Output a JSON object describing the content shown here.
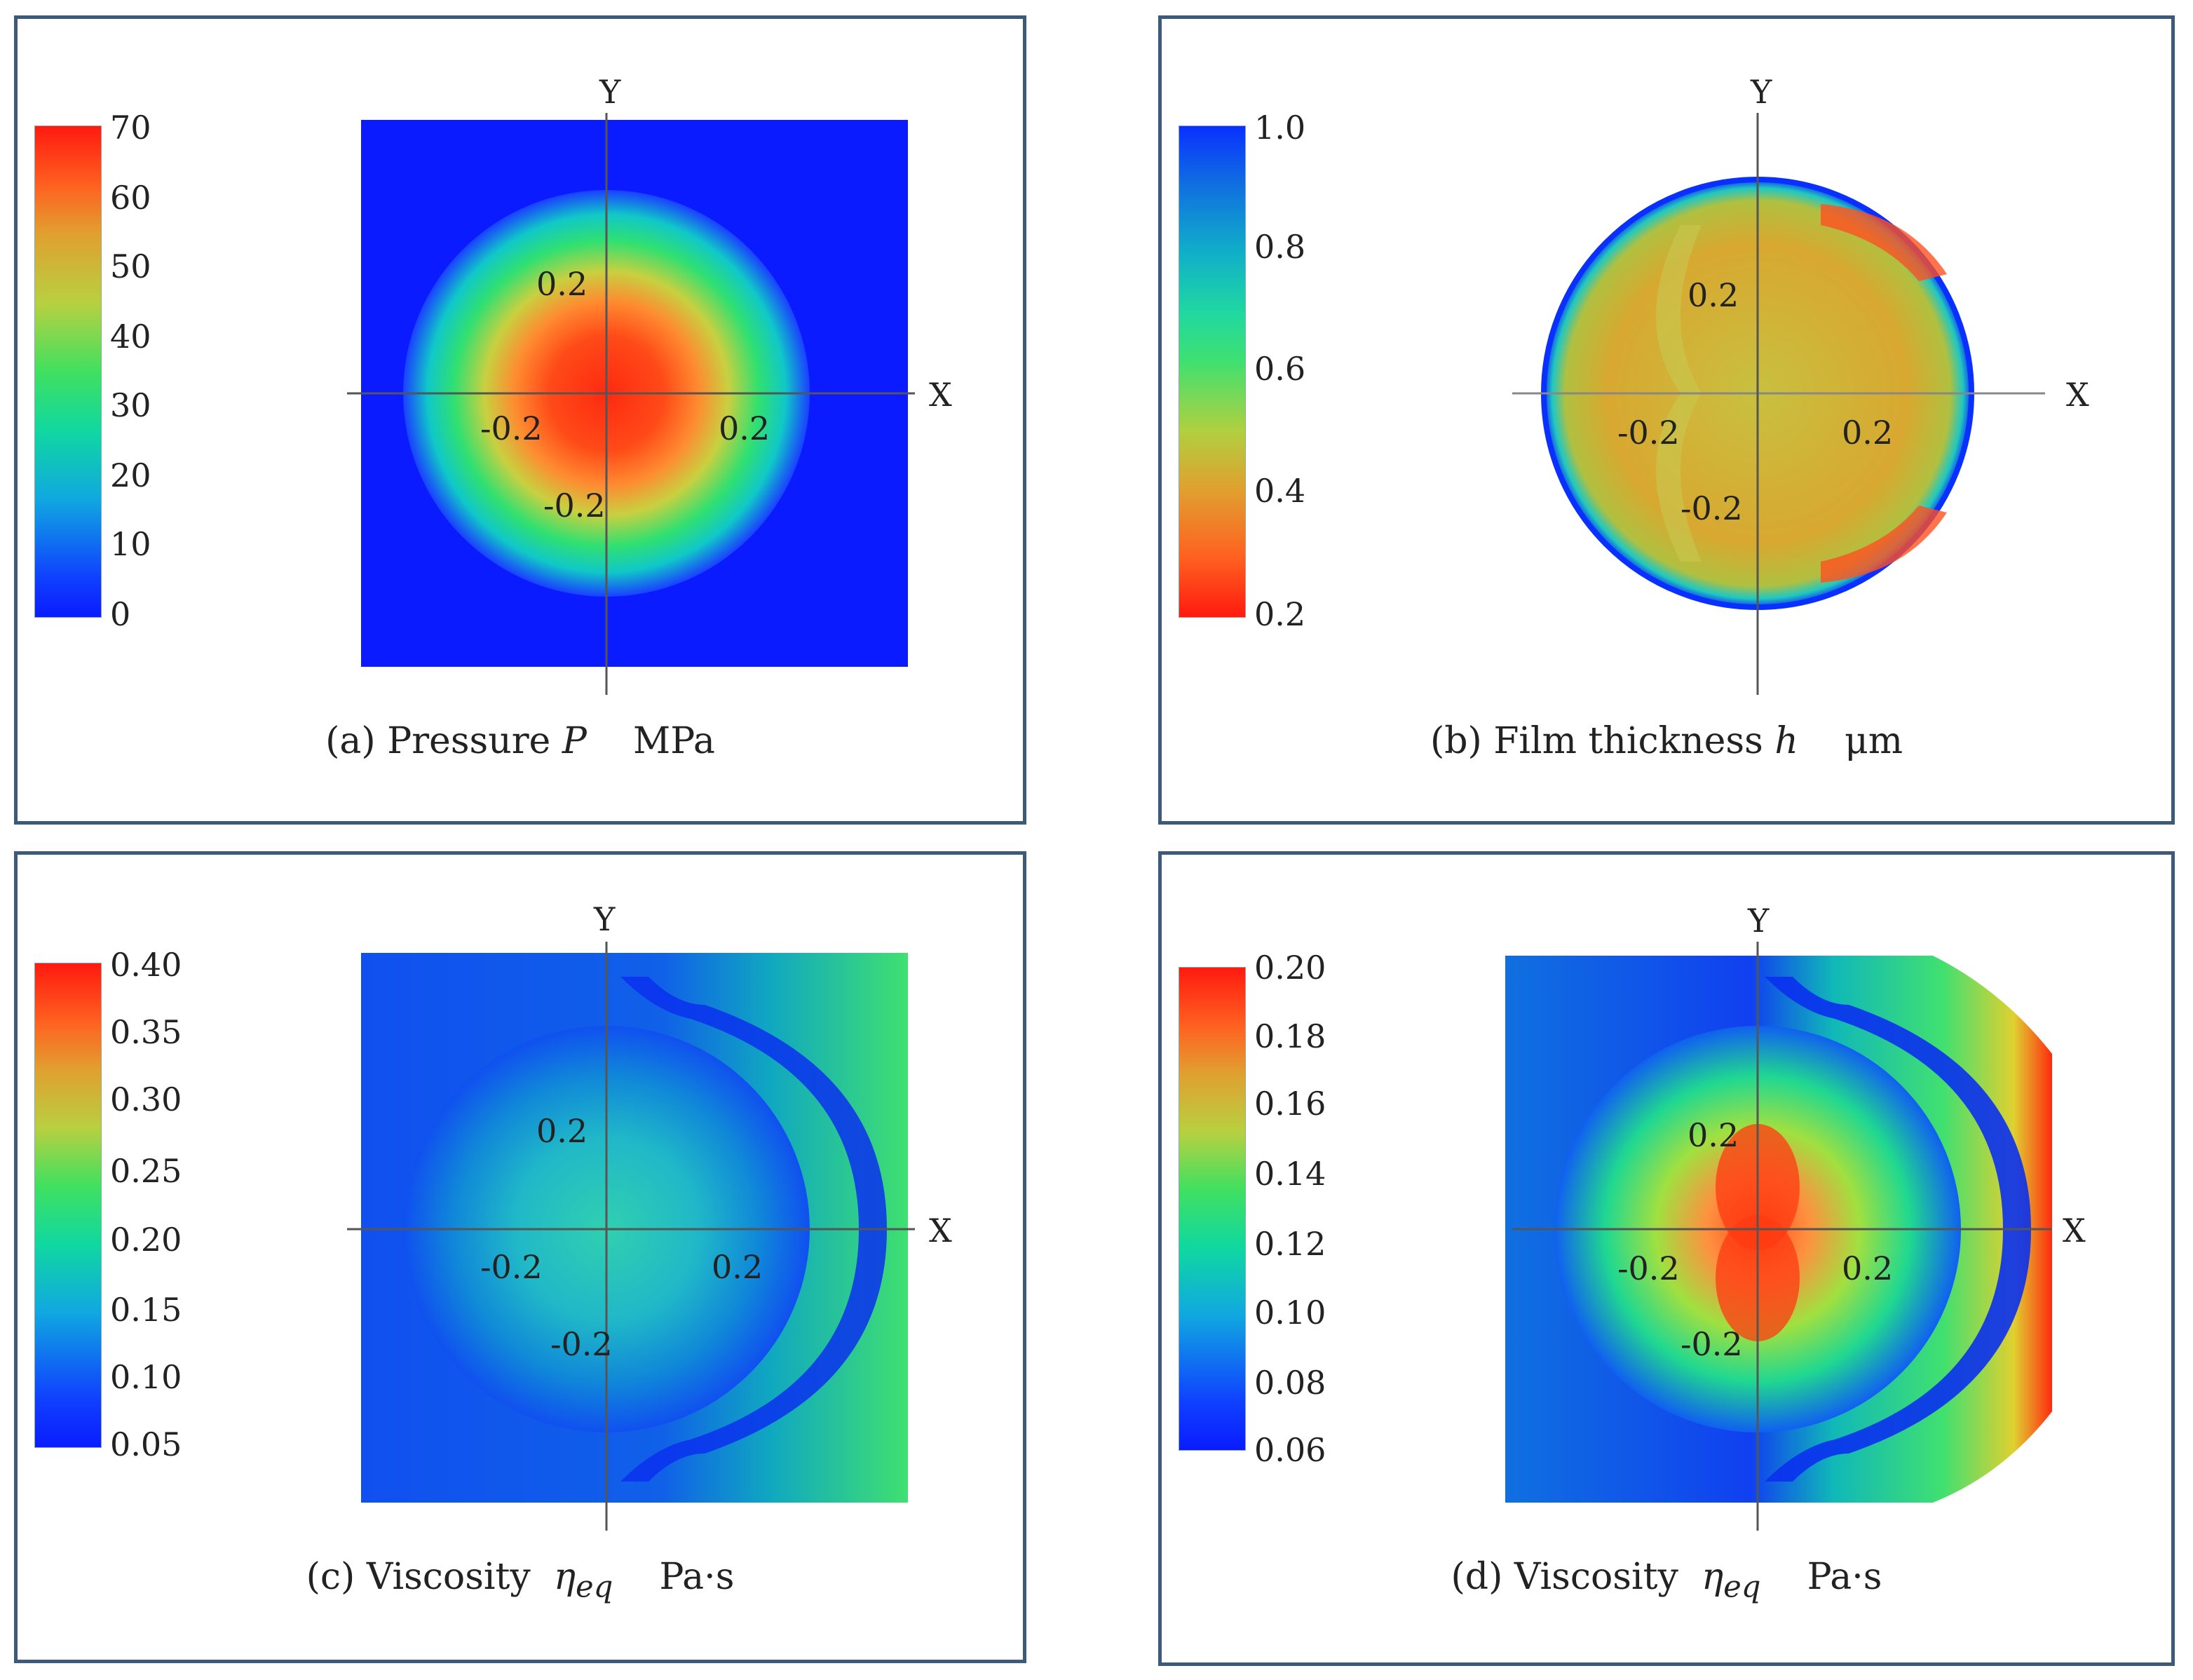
{
  "panels": {
    "a": {
      "caption": "(a) Pressure",
      "symbol": "P",
      "unit": "MPa",
      "colorbar_ticks": [
        "70",
        "60",
        "50",
        "40",
        "30",
        "20",
        "10",
        "0"
      ]
    },
    "b": {
      "caption": "(b) Film thickness",
      "symbol": "h",
      "unit": "μm",
      "colorbar_ticks": [
        "1.0",
        "0.8",
        "0.6",
        "0.4",
        "0.2"
      ]
    },
    "c": {
      "caption": "(c) Viscosity",
      "symbol": "η",
      "subscript": "eq",
      "unit": "Pa·s",
      "colorbar_ticks": [
        "0.40",
        "0.35",
        "0.30",
        "0.25",
        "0.20",
        "0.15",
        "0.10",
        "0.05"
      ]
    },
    "d": {
      "caption": "(d) Viscosity",
      "symbol": "η",
      "subscript": "eq",
      "unit": "Pa·s",
      "colorbar_ticks": [
        "0.20",
        "0.18",
        "0.16",
        "0.14",
        "0.12",
        "0.10",
        "0.08",
        "0.06"
      ]
    }
  },
  "axes": {
    "x_label": "X",
    "y_label": "Y",
    "tick_pos_x": "0.2",
    "tick_neg_x": "-0.2",
    "tick_pos_y": "0.2",
    "tick_neg_y": "-0.2"
  },
  "chart_data": [
    {
      "type": "heatmap",
      "title": "(a) Pressure P MPa",
      "xlabel": "X",
      "ylabel": "Y",
      "colorbar_range": [
        0,
        70
      ],
      "colorbar_ticks": [
        70,
        60,
        50,
        40,
        30,
        20,
        10,
        0
      ]
    },
    {
      "type": "heatmap",
      "title": "(b) Film thickness h μm",
      "xlabel": "X",
      "ylabel": "Y",
      "colorbar_range": [
        0.2,
        1.0
      ],
      "colorbar_ticks": [
        1.0,
        0.8,
        0.6,
        0.4,
        0.2
      ]
    },
    {
      "type": "heatmap",
      "title": "(c) Viscosity η_eq Pa·s",
      "xlabel": "X",
      "ylabel": "Y",
      "colorbar_range": [
        0.05,
        0.4
      ],
      "colorbar_ticks": [
        0.4,
        0.35,
        0.3,
        0.25,
        0.2,
        0.15,
        0.1,
        0.05
      ]
    },
    {
      "type": "heatmap",
      "title": "(d) Viscosity η_eq Pa·s",
      "xlabel": "X",
      "ylabel": "Y",
      "colorbar_range": [
        0.06,
        0.2
      ],
      "colorbar_ticks": [
        0.2,
        0.18,
        0.16,
        0.14,
        0.12,
        0.1,
        0.08,
        0.06
      ]
    }
  ],
  "colors": {
    "frame": "#3d5a7a",
    "jet_blue": "#0a1cff",
    "jet_red": "#ff1a10"
  }
}
